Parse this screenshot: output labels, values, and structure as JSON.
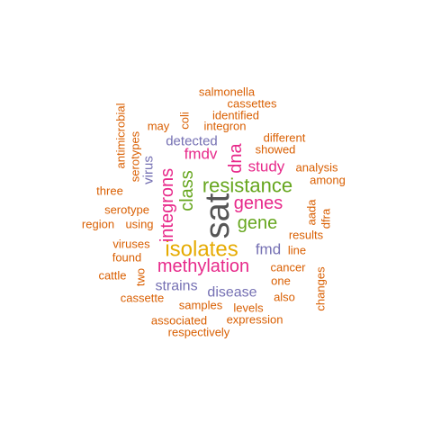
{
  "colors": {
    "orange": "#D95F02",
    "pink": "#E7298A",
    "green": "#66A61E",
    "purple": "#7570B3",
    "gold": "#E6AB02",
    "dark": "#555555"
  },
  "words": [
    {
      "id": "sat",
      "text": "sat",
      "color": "dark"
    },
    {
      "id": "isolates",
      "text": "isolates",
      "color": "gold"
    },
    {
      "id": "resistance",
      "text": "resistance",
      "color": "green"
    },
    {
      "id": "methylation",
      "text": "methylation",
      "color": "pink"
    },
    {
      "id": "integrons",
      "text": "integrons",
      "color": "pink"
    },
    {
      "id": "genes",
      "text": "genes",
      "color": "pink"
    },
    {
      "id": "gene",
      "text": "gene",
      "color": "green"
    },
    {
      "id": "class",
      "text": "class",
      "color": "green"
    },
    {
      "id": "dna",
      "text": "dna",
      "color": "pink"
    },
    {
      "id": "study",
      "text": "study",
      "color": "pink"
    },
    {
      "id": "fmdv",
      "text": "fmdv",
      "color": "pink"
    },
    {
      "id": "fmd",
      "text": "fmd",
      "color": "purple"
    },
    {
      "id": "strains",
      "text": "strains",
      "color": "purple"
    },
    {
      "id": "disease",
      "text": "disease",
      "color": "purple"
    },
    {
      "id": "detected",
      "text": "detected",
      "color": "purple"
    },
    {
      "id": "virus",
      "text": "virus",
      "color": "purple"
    },
    {
      "id": "salmonella",
      "text": "salmonella",
      "color": "orange"
    },
    {
      "id": "cassettes",
      "text": "cassettes",
      "color": "orange"
    },
    {
      "id": "identified",
      "text": "identified",
      "color": "orange"
    },
    {
      "id": "integron",
      "text": "integron",
      "color": "orange"
    },
    {
      "id": "may",
      "text": "may",
      "color": "orange"
    },
    {
      "id": "coli",
      "text": "coli",
      "color": "orange"
    },
    {
      "id": "antimicrobial",
      "text": "antimicrobial",
      "color": "orange"
    },
    {
      "id": "serotypes",
      "text": "serotypes",
      "color": "orange"
    },
    {
      "id": "different",
      "text": "different",
      "color": "orange"
    },
    {
      "id": "showed",
      "text": "showed",
      "color": "orange"
    },
    {
      "id": "analysis",
      "text": "analysis",
      "color": "orange"
    },
    {
      "id": "among",
      "text": "among",
      "color": "orange"
    },
    {
      "id": "three",
      "text": "three",
      "color": "orange"
    },
    {
      "id": "serotype",
      "text": "serotype",
      "color": "orange"
    },
    {
      "id": "region",
      "text": "region",
      "color": "orange"
    },
    {
      "id": "using",
      "text": "using",
      "color": "orange"
    },
    {
      "id": "aada",
      "text": "aada",
      "color": "orange"
    },
    {
      "id": "dfra",
      "text": "dfra",
      "color": "orange"
    },
    {
      "id": "results",
      "text": "results",
      "color": "orange"
    },
    {
      "id": "viruses",
      "text": "viruses",
      "color": "orange"
    },
    {
      "id": "found",
      "text": "found",
      "color": "orange"
    },
    {
      "id": "line",
      "text": "line",
      "color": "orange"
    },
    {
      "id": "cattle",
      "text": "cattle",
      "color": "orange"
    },
    {
      "id": "two",
      "text": "two",
      "color": "orange"
    },
    {
      "id": "cancer",
      "text": "cancer",
      "color": "orange"
    },
    {
      "id": "one",
      "text": "one",
      "color": "orange"
    },
    {
      "id": "changes",
      "text": "changes",
      "color": "orange"
    },
    {
      "id": "cassette",
      "text": "cassette",
      "color": "orange"
    },
    {
      "id": "also",
      "text": "also",
      "color": "orange"
    },
    {
      "id": "samples",
      "text": "samples",
      "color": "orange"
    },
    {
      "id": "levels",
      "text": "levels",
      "color": "orange"
    },
    {
      "id": "associated",
      "text": "associated",
      "color": "orange"
    },
    {
      "id": "expression",
      "text": "expression",
      "color": "orange"
    },
    {
      "id": "respectively",
      "text": "respectively",
      "color": "orange"
    }
  ]
}
